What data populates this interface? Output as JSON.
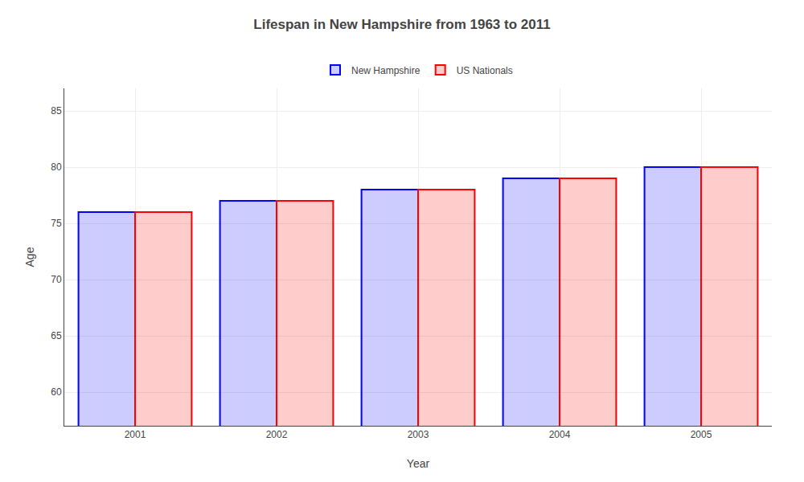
{
  "chart_data": {
    "type": "bar",
    "title": "Lifespan in New Hampshire from 1963 to 2011",
    "xlabel": "Year",
    "ylabel": "Age",
    "categories": [
      "2001",
      "2002",
      "2003",
      "2004",
      "2005"
    ],
    "series": [
      {
        "name": "New Hampshire",
        "color": "#0000ff",
        "values": [
          76,
          77,
          78,
          79,
          80
        ]
      },
      {
        "name": "US Nationals",
        "color": "#ff0000",
        "values": [
          76,
          77,
          78,
          79,
          80
        ]
      }
    ],
    "ylim": [
      57,
      87
    ],
    "yticks": [
      60,
      65,
      70,
      75,
      80,
      85
    ],
    "grid": true,
    "legend": "top"
  }
}
